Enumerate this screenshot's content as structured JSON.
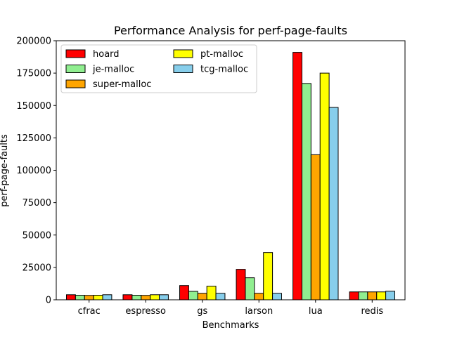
{
  "chart_data": {
    "type": "bar",
    "title": "Performance Analysis for perf-page-faults",
    "xlabel": "Benchmarks",
    "ylabel": "perf-page-faults",
    "ylim": [
      0,
      200000
    ],
    "yticks": [
      0,
      25000,
      50000,
      75000,
      100000,
      125000,
      150000,
      175000,
      200000
    ],
    "categories": [
      "cfrac",
      "espresso",
      "gs",
      "larson",
      "lua",
      "redis"
    ],
    "series": [
      {
        "name": "hoard",
        "color": "#ff0000",
        "values": [
          3900,
          3900,
          11000,
          23500,
          191000,
          6100
        ]
      },
      {
        "name": "je-malloc",
        "color": "#90ee90",
        "values": [
          3500,
          3500,
          6500,
          17000,
          167000,
          6100
        ]
      },
      {
        "name": "super-malloc",
        "color": "#ffa500",
        "values": [
          3400,
          3400,
          5000,
          5000,
          112000,
          6100
        ]
      },
      {
        "name": "pt-malloc",
        "color": "#ffff00",
        "values": [
          3500,
          3900,
          10500,
          36500,
          175000,
          6100
        ]
      },
      {
        "name": "tcg-malloc",
        "color": "#87ceeb",
        "values": [
          3900,
          3900,
          5000,
          5000,
          148500,
          6600
        ]
      }
    ],
    "grid": false,
    "legend_position": "top-left",
    "legend_columns": 2
  }
}
